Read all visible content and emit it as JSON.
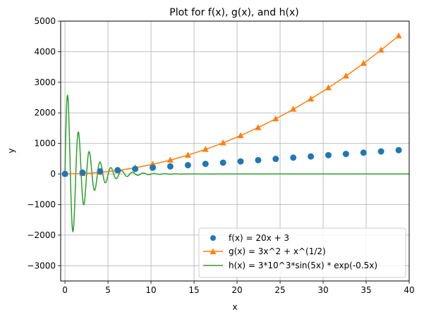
{
  "chart_data": {
    "type": "line",
    "title": "Plot for f(x), g(x), and h(x)",
    "xlabel": "x",
    "ylabel": "y",
    "xlim": [
      -0.5,
      40
    ],
    "ylim": [
      -3500,
      5000
    ],
    "grid": true,
    "legend_position": "lower-right",
    "xticks": [
      0,
      5,
      10,
      15,
      20,
      25,
      30,
      35,
      40
    ],
    "yticks": [
      -3000,
      -2000,
      -1000,
      0,
      1000,
      2000,
      3000,
      4000,
      5000
    ],
    "xtick_labels": [
      "0",
      "5",
      "10",
      "15",
      "20",
      "25",
      "30",
      "35",
      "40"
    ],
    "ytick_labels": [
      "−3000",
      "−2000",
      "−1000",
      "0",
      "1000",
      "2000",
      "3000",
      "4000",
      "5000"
    ],
    "series": [
      {
        "name": "f(x) = 20x + 3",
        "style": "scatter-circle",
        "color": "#1f77b4",
        "x": [
          0,
          2.04,
          4.08,
          6.12,
          8.16,
          10.2,
          12.24,
          14.29,
          16.33,
          18.37,
          20.41,
          22.45,
          24.49,
          26.53,
          28.57,
          30.61,
          32.65,
          34.69,
          36.73,
          38.78
        ],
        "y": [
          3,
          44,
          85,
          125,
          166,
          207,
          248,
          289,
          330,
          370,
          411,
          452,
          493,
          534,
          574,
          615,
          656,
          697,
          738,
          779
        ]
      },
      {
        "name": "g(x) = 3x^2 + x^(1/2)",
        "style": "line-triangle",
        "color": "#ff7f0e",
        "x": [
          0,
          2.04,
          4.08,
          6.12,
          8.16,
          10.2,
          12.24,
          14.29,
          16.33,
          18.37,
          20.41,
          22.45,
          24.49,
          26.53,
          28.57,
          30.61,
          32.65,
          34.69,
          36.73,
          38.78
        ],
        "y": [
          0,
          14,
          52,
          115,
          203,
          316,
          453,
          616,
          804,
          1017,
          1254,
          1517,
          1804,
          2117,
          2454,
          2817,
          3204,
          3617,
          4054,
          4517
        ]
      },
      {
        "name": "h(x) = 3*10^3*sin(5x) * exp(-0.5x)",
        "style": "line",
        "color": "#2ca02c",
        "x_range": [
          0,
          40
        ],
        "formula": "3*10^3*sin(5x) * exp(-0.5x)"
      }
    ]
  }
}
